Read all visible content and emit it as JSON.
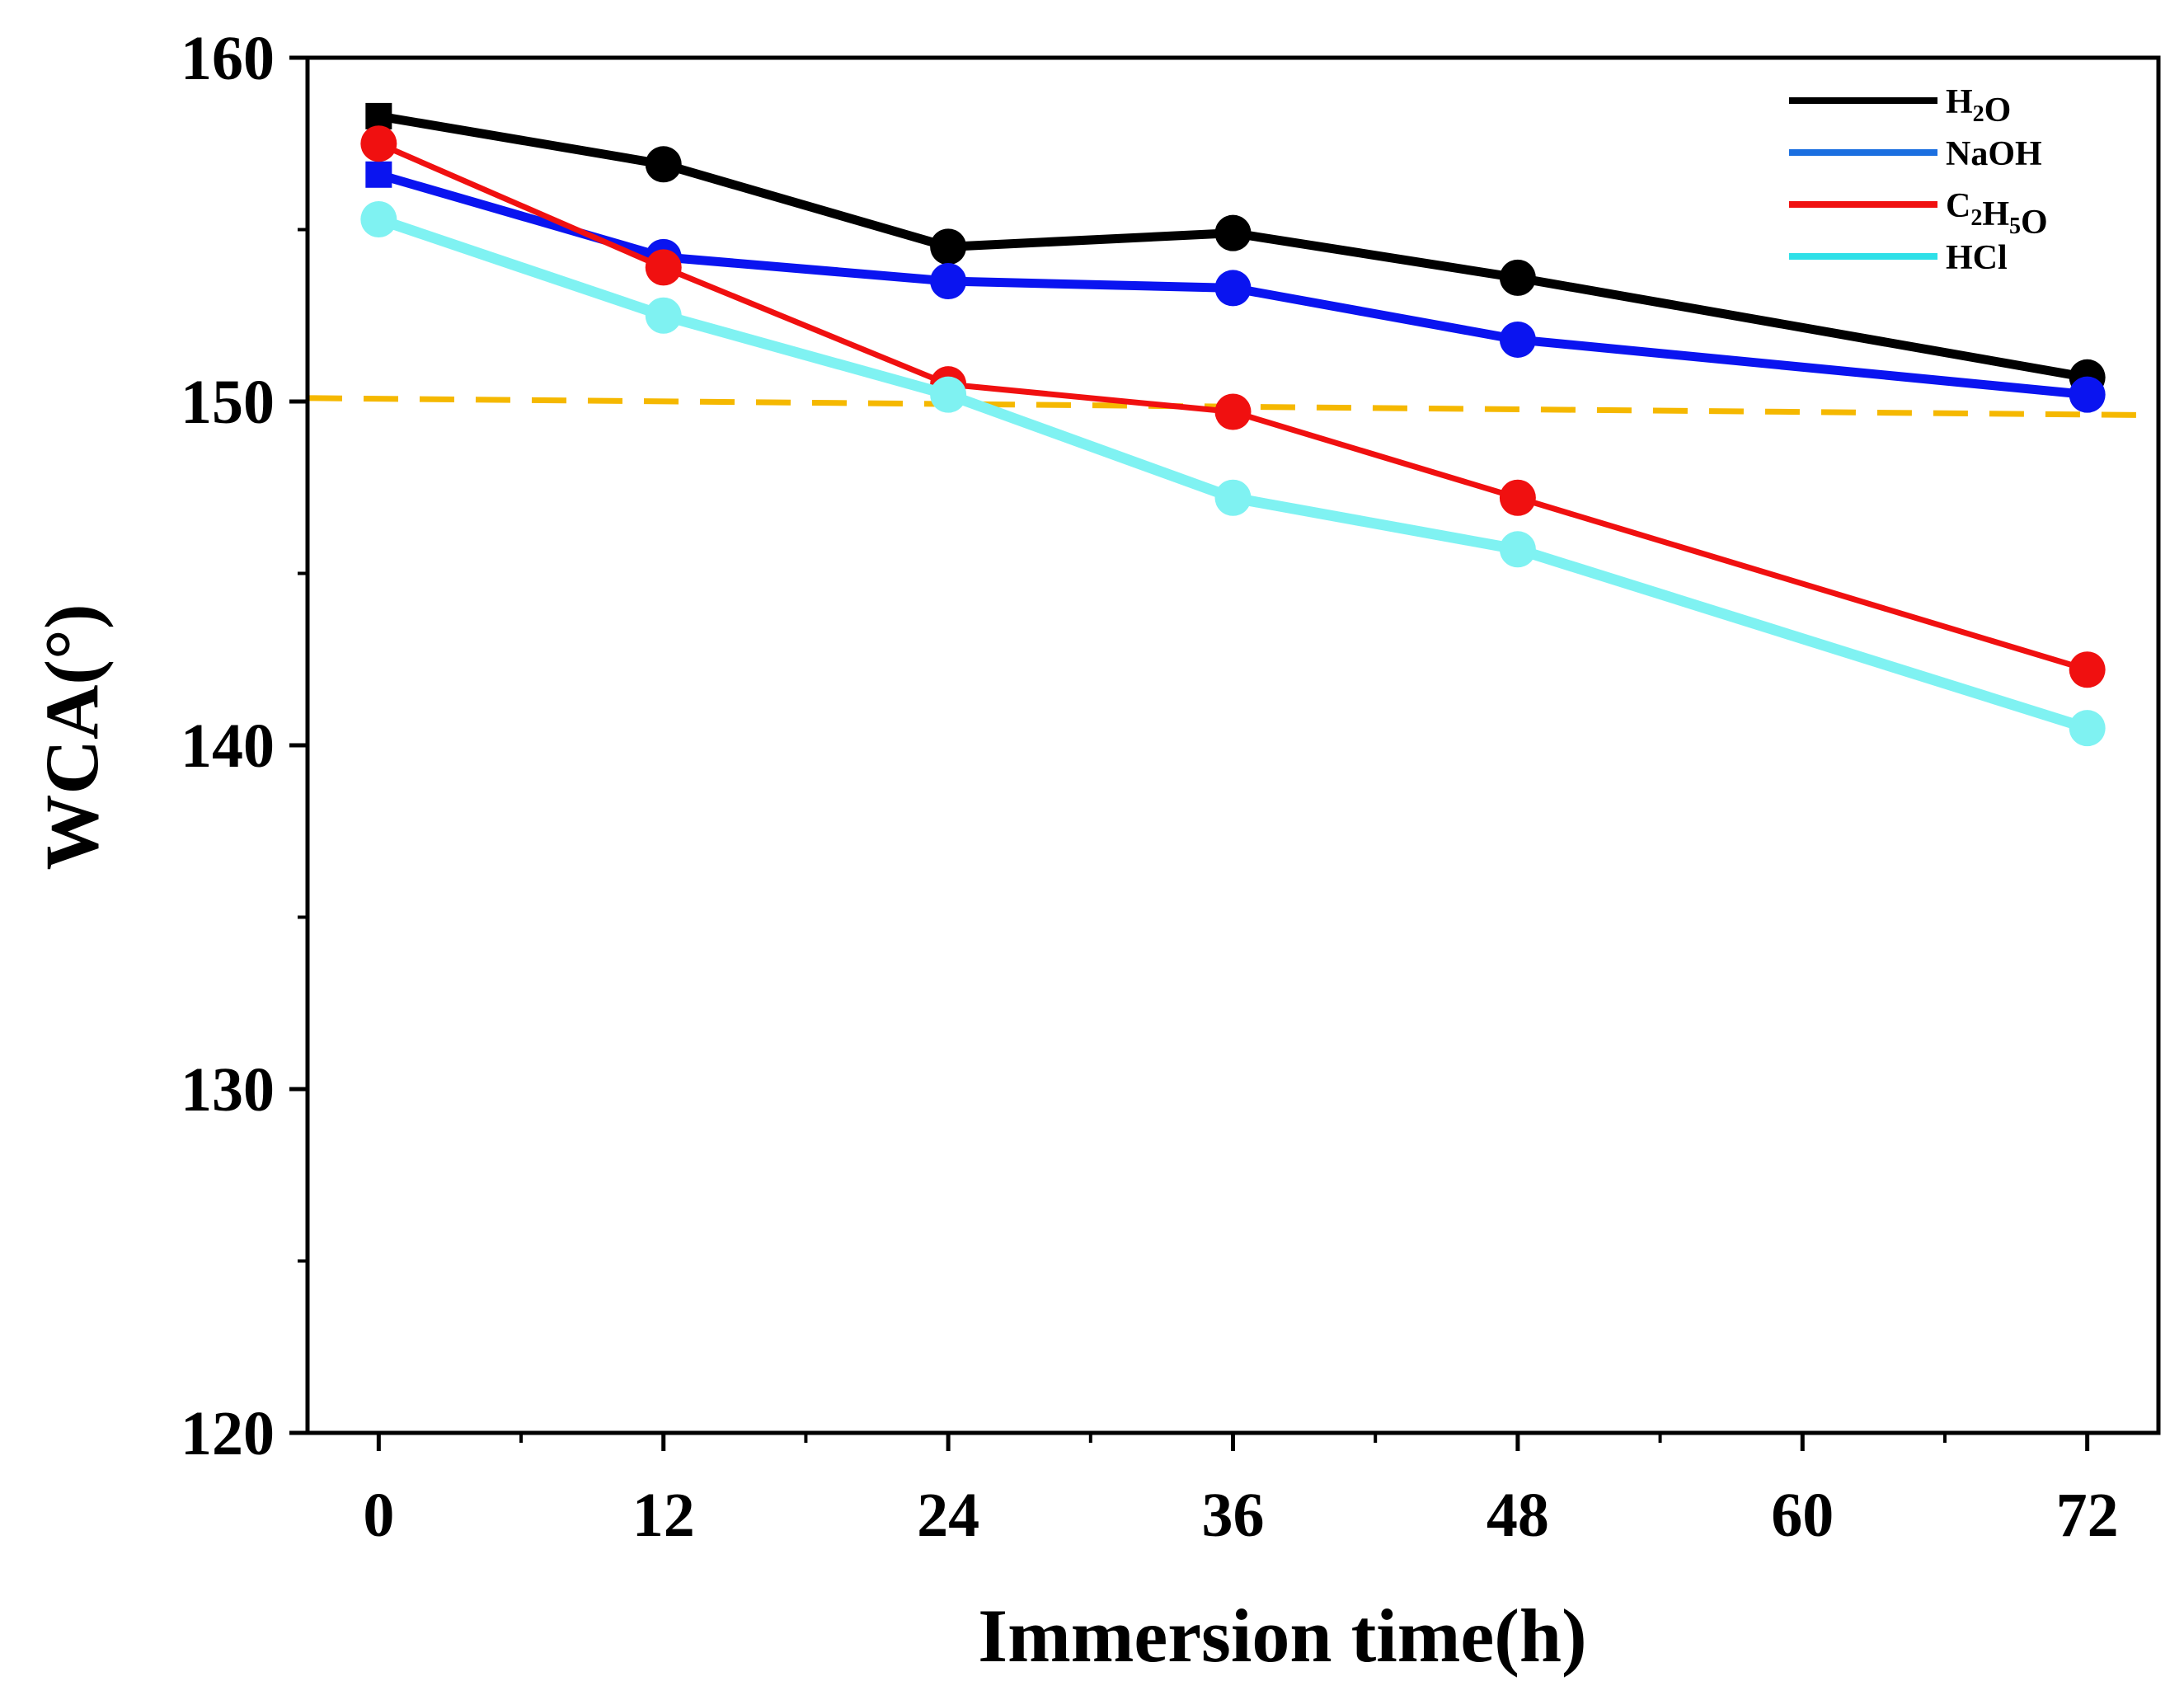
{
  "chart_data": {
    "type": "line",
    "title": "",
    "xlabel": "Immersion time(h)",
    "ylabel": "WCA(°)",
    "xlim": [
      -3,
      75
    ],
    "ylim": [
      120,
      160
    ],
    "xticks": [
      0,
      12,
      24,
      36,
      48,
      60,
      72
    ],
    "yticks": [
      120,
      130,
      140,
      150,
      160
    ],
    "xtick_labels": [
      "0",
      "12",
      "24",
      "36",
      "48",
      "60",
      "72"
    ],
    "ytick_labels": [
      "120",
      "130",
      "140",
      "150",
      "160"
    ],
    "grid": false,
    "legend_position": "top-right",
    "reference_line": {
      "from": [
        -3,
        150.1
      ],
      "to": [
        75,
        149.6
      ],
      "color": "#f5b800",
      "style": "dashed"
    },
    "series": [
      {
        "name": "H2O",
        "legend": {
          "main": "H",
          "sub": "2",
          "rest": "O"
        },
        "color": "#000000",
        "x": [
          0,
          12,
          24,
          36,
          48,
          72
        ],
        "y": [
          158.3,
          156.9,
          154.5,
          154.9,
          153.6,
          150.7
        ],
        "first_marker": "square"
      },
      {
        "name": "NaOH",
        "legend": {
          "main": "NaOH",
          "sub": "",
          "rest": ""
        },
        "color": "#0a14f0",
        "legend_color": "#1b6fe0",
        "x": [
          0,
          12,
          24,
          36,
          48,
          72
        ],
        "y": [
          156.6,
          154.2,
          153.5,
          153.3,
          151.8,
          150.2
        ],
        "first_marker": "square"
      },
      {
        "name": "C2H5O",
        "legend": {
          "main": "C",
          "sub": "2",
          "rest": "H",
          "sub2": "5",
          "rest2": "O"
        },
        "color": "#f01010",
        "x": [
          0,
          12,
          24,
          36,
          48,
          72
        ],
        "y": [
          157.5,
          153.9,
          150.5,
          149.7,
          147.2,
          142.2
        ],
        "first_marker": "circle"
      },
      {
        "name": "HCl",
        "legend": {
          "main": "HCl",
          "sub": "",
          "rest": ""
        },
        "color": "#7ff2f2",
        "legend_color": "#2ee0e8",
        "x": [
          0,
          12,
          24,
          36,
          48,
          72
        ],
        "y": [
          155.3,
          152.5,
          150.2,
          147.2,
          145.7,
          140.5
        ],
        "first_marker": "circle"
      }
    ]
  }
}
